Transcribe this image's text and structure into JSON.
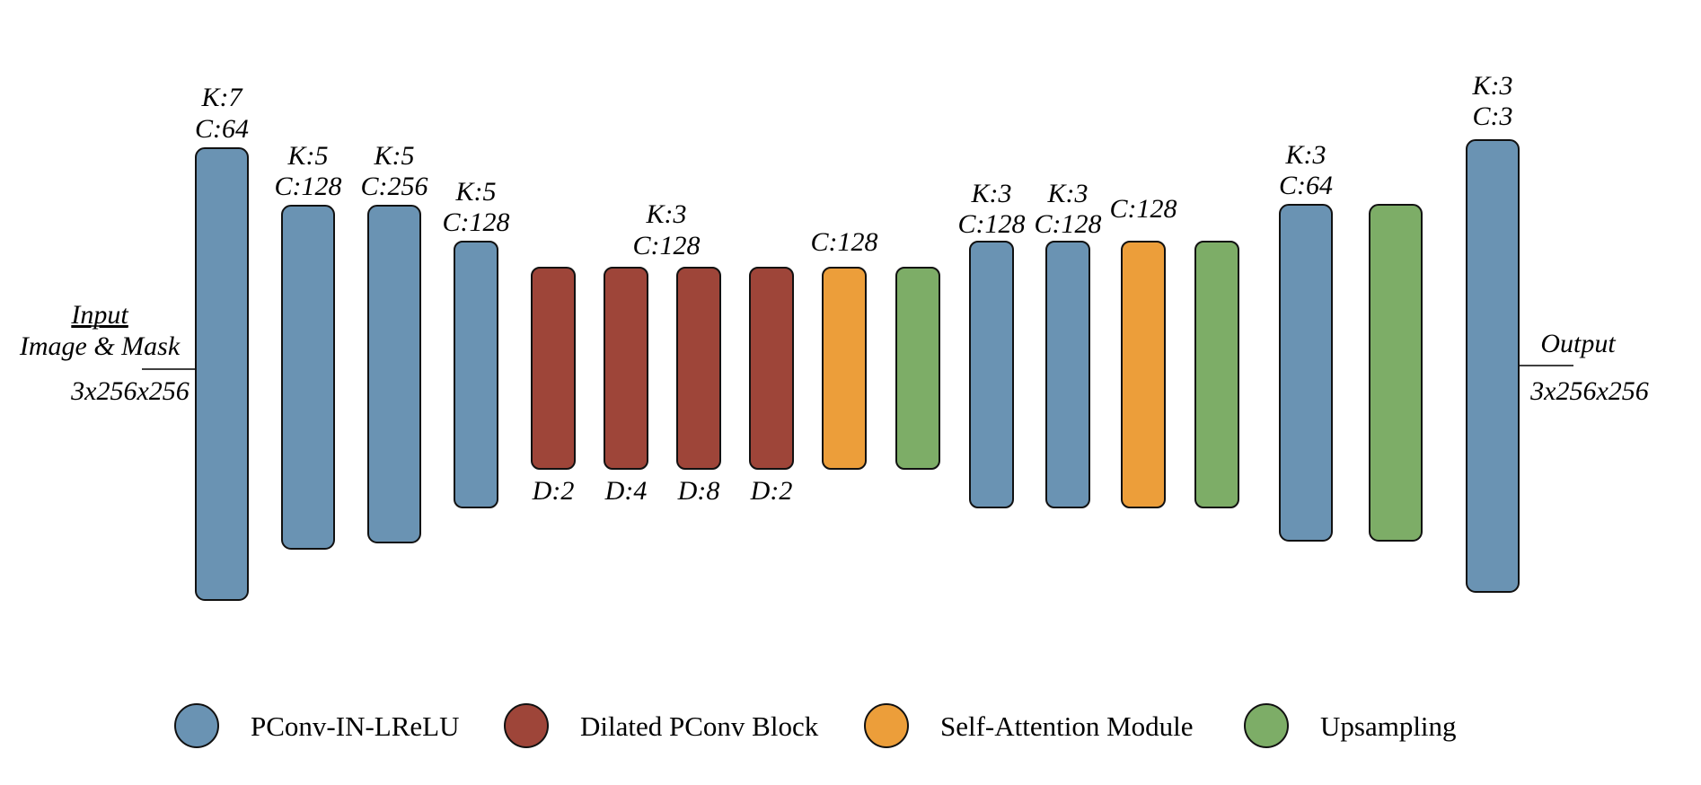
{
  "colors": {
    "pconv": "#6a93b3",
    "dilated": "#9e4539",
    "attention": "#ec9e3a",
    "upsampling": "#7dad67"
  },
  "input": {
    "title": "Input",
    "subtitle": "Image & Mask",
    "shape": "3x256x256"
  },
  "output": {
    "title": "Output",
    "shape": "3x256x256"
  },
  "blocks": [
    {
      "type": "pconv",
      "labels": [
        "K:7",
        "C:64"
      ]
    },
    {
      "type": "pconv",
      "labels": [
        "K:5",
        "C:128"
      ]
    },
    {
      "type": "pconv",
      "labels": [
        "K:5",
        "C:256"
      ]
    },
    {
      "type": "pconv",
      "labels": [
        "K:5",
        "C:128"
      ]
    },
    {
      "type": "dilated",
      "bottom_label": "D:2"
    },
    {
      "type": "dilated",
      "bottom_label": "D:4"
    },
    {
      "type": "dilated",
      "bottom_label": "D:8"
    },
    {
      "type": "dilated",
      "bottom_label": "D:2"
    },
    {
      "type": "attention",
      "labels": [
        "C:128"
      ]
    },
    {
      "type": "upsampling"
    },
    {
      "type": "pconv",
      "labels": [
        "K:3",
        "C:128"
      ]
    },
    {
      "type": "pconv",
      "labels": [
        "K:3",
        "C:128"
      ]
    },
    {
      "type": "attention",
      "labels": [
        "C:128"
      ]
    },
    {
      "type": "upsampling"
    },
    {
      "type": "pconv",
      "labels": [
        "K:3",
        "C:64"
      ]
    },
    {
      "type": "upsampling"
    },
    {
      "type": "pconv",
      "labels": [
        "K:3",
        "C:3"
      ]
    }
  ],
  "dilated_group_labels": [
    "K:3",
    "C:128"
  ],
  "legend": [
    {
      "key": "pconv",
      "label": "PConv-IN-LReLU"
    },
    {
      "key": "dilated",
      "label": "Dilated PConv Block"
    },
    {
      "key": "attention",
      "label": "Self-Attention Module"
    },
    {
      "key": "upsampling",
      "label": "Upsampling"
    }
  ]
}
